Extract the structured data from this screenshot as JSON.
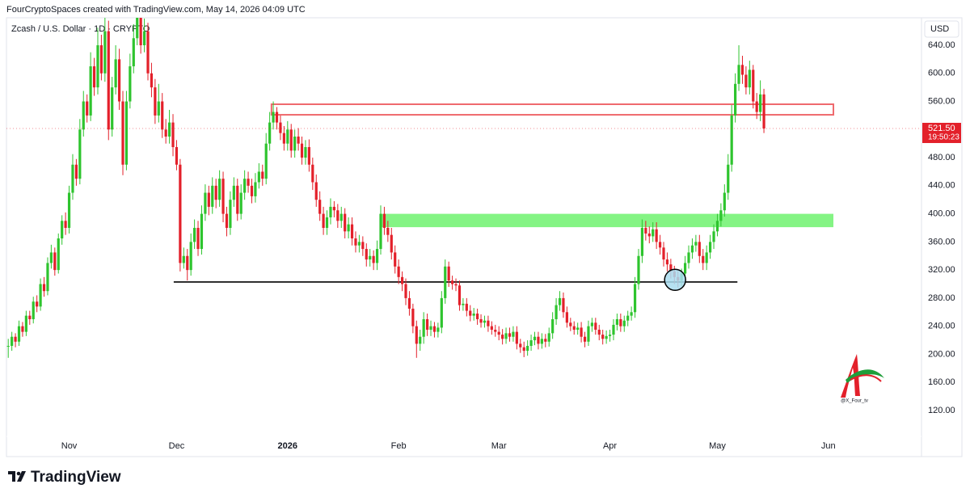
{
  "header": "FourCryptoSpaces created with TradingView.com, May 14, 2026 04:09 UTC",
  "logo": "TradingView",
  "watermark": "@X_Four_tv",
  "chart_data": {
    "type": "candlestick",
    "title": "Zcash / U.S. Dollar · 1D · CRYPTO",
    "currency": "USD",
    "up_color": "#2ec42e",
    "down_color": "#e3202a",
    "close": [
      212,
      225,
      218,
      240,
      232,
      255,
      250,
      275,
      268,
      300,
      290,
      330,
      345,
      320,
      365,
      390,
      380,
      430,
      470,
      450,
      520,
      560,
      540,
      610,
      580,
      640,
      600,
      660,
      520,
      580,
      620,
      560,
      470,
      560,
      610,
      650,
      680,
      640,
      660,
      600,
      580,
      540,
      560,
      520,
      510,
      530,
      495,
      470,
      330,
      340,
      320,
      360,
      380,
      350,
      400,
      430,
      410,
      440,
      420,
      450,
      400,
      380,
      420,
      440,
      400,
      430,
      450,
      440,
      425,
      445,
      460,
      450,
      500,
      530,
      545,
      530,
      515,
      500,
      520,
      490,
      510,
      500,
      480,
      495,
      470,
      445,
      420,
      400,
      380,
      395,
      410,
      405,
      390,
      400,
      375,
      385,
      365,
      355,
      360,
      350,
      335,
      340,
      330,
      350,
      400,
      380,
      370,
      345,
      325,
      310,
      300,
      280,
      265,
      240,
      215,
      225,
      250,
      235,
      240,
      232,
      238,
      280,
      325,
      305,
      300,
      298,
      270,
      272,
      262,
      255,
      258,
      250,
      245,
      248,
      240,
      235,
      232,
      228,
      222,
      230,
      225,
      232,
      215,
      210,
      205,
      212,
      220,
      225,
      215,
      222,
      218,
      230,
      250,
      270,
      280,
      260,
      245,
      240,
      235,
      238,
      225,
      218,
      240,
      245,
      235,
      228,
      222,
      226,
      228,
      242,
      250,
      240,
      248,
      255,
      260,
      300,
      340,
      380,
      372,
      368,
      378,
      360,
      352,
      335,
      328,
      318,
      310,
      305,
      315,
      330,
      345,
      355,
      360,
      340,
      330,
      345,
      360,
      375,
      390,
      405,
      430,
      470,
      540,
      585,
      612,
      598,
      580,
      605,
      560,
      545,
      570,
      521.5
    ],
    "high": [
      222,
      232,
      230,
      248,
      246,
      262,
      262,
      282,
      284,
      308,
      310,
      338,
      356,
      352,
      372,
      398,
      402,
      440,
      485,
      478,
      535,
      575,
      570,
      630,
      622,
      665,
      655,
      690,
      675,
      595,
      640,
      635,
      575,
      575,
      628,
      670,
      700,
      695,
      678,
      672,
      615,
      592,
      585,
      572,
      535,
      548,
      542,
      505,
      478,
      352,
      350,
      372,
      392,
      390,
      412,
      442,
      440,
      452,
      450,
      462,
      460,
      410,
      432,
      452,
      450,
      442,
      462,
      460,
      450,
      458,
      472,
      470,
      515,
      545,
      560,
      552,
      540,
      525,
      532,
      528,
      520,
      522,
      510,
      505,
      506,
      480,
      456,
      432,
      410,
      405,
      422,
      418,
      414,
      410,
      408,
      395,
      395,
      375,
      370,
      368,
      358,
      350,
      348,
      362,
      412,
      410,
      390,
      380,
      355,
      335,
      318,
      308,
      290,
      272,
      248,
      235,
      260,
      258,
      248,
      246,
      245,
      290,
      335,
      332,
      312,
      308,
      305,
      280,
      280,
      270,
      266,
      265,
      257,
      255,
      255,
      247,
      242,
      240,
      236,
      238,
      238,
      240,
      240,
      222,
      218,
      220,
      228,
      232,
      232,
      230,
      229,
      238,
      260,
      280,
      290,
      288,
      268,
      252,
      247,
      245,
      246,
      232,
      248,
      252,
      252,
      242,
      235,
      234,
      235,
      250,
      258,
      258,
      255,
      262,
      268,
      310,
      350,
      392,
      390,
      382,
      388,
      388,
      370,
      360,
      345,
      336,
      326,
      318,
      322,
      340,
      355,
      365,
      370,
      370,
      350,
      355,
      370,
      385,
      400,
      415,
      442,
      485,
      555,
      600,
      640,
      625,
      610,
      618,
      612,
      572,
      590,
      578
    ],
    "low": [
      195,
      205,
      210,
      212,
      225,
      226,
      242,
      244,
      260,
      262,
      282,
      284,
      322,
      312,
      315,
      356,
      370,
      372,
      420,
      440,
      442,
      510,
      530,
      532,
      568,
      570,
      590,
      588,
      505,
      510,
      570,
      548,
      455,
      462,
      550,
      600,
      640,
      628,
      630,
      590,
      566,
      528,
      530,
      508,
      500,
      500,
      482,
      462,
      318,
      322,
      305,
      312,
      350,
      340,
      342,
      390,
      398,
      400,
      408,
      410,
      388,
      368,
      370,
      410,
      390,
      392,
      420,
      430,
      415,
      416,
      436,
      440,
      442,
      490,
      520,
      520,
      505,
      490,
      490,
      480,
      480,
      490,
      470,
      470,
      460,
      434,
      410,
      390,
      370,
      370,
      385,
      395,
      380,
      380,
      365,
      365,
      355,
      345,
      345,
      340,
      325,
      325,
      320,
      320,
      342,
      370,
      360,
      335,
      315,
      300,
      290,
      270,
      255,
      230,
      195,
      205,
      215,
      226,
      226,
      224,
      224,
      230,
      272,
      296,
      292,
      290,
      262,
      262,
      254,
      247,
      248,
      242,
      238,
      238,
      232,
      228,
      225,
      220,
      214,
      215,
      218,
      218,
      207,
      202,
      196,
      198,
      205,
      213,
      207,
      208,
      210,
      211,
      222,
      242,
      262,
      252,
      238,
      233,
      228,
      228,
      217,
      210,
      212,
      232,
      228,
      220,
      214,
      215,
      218,
      220,
      234,
      232,
      232,
      240,
      248,
      252,
      292,
      330,
      362,
      358,
      360,
      350,
      342,
      325,
      318,
      308,
      300,
      295,
      297,
      307,
      322,
      336,
      346,
      330,
      320,
      320,
      336,
      350,
      368,
      382,
      396,
      420,
      460,
      530,
      575,
      585,
      570,
      570,
      550,
      535,
      532,
      515
    ],
    "last_price_label": "521.50",
    "countdown": "19:50:23",
    "xlim": [
      -0.5,
      255
    ],
    "xticks": [
      {
        "value": 17,
        "label": "Nov"
      },
      {
        "value": 47,
        "label": "Dec"
      },
      {
        "value": 78,
        "label": "2026"
      },
      {
        "value": 109,
        "label": "Feb"
      },
      {
        "value": 137,
        "label": "Mar"
      },
      {
        "value": 168,
        "label": "Apr"
      },
      {
        "value": 198,
        "label": "May"
      },
      {
        "value": 229,
        "label": "Jun"
      }
    ],
    "ylim": [
      54.4,
      679.1
    ],
    "yticks": [
      {
        "value": 120,
        "label": "120.00"
      },
      {
        "value": 160,
        "label": "160.00"
      },
      {
        "value": 200,
        "label": "200.00"
      },
      {
        "value": 240,
        "label": "240.00"
      },
      {
        "value": 280,
        "label": "280.00"
      },
      {
        "value": 320,
        "label": "320.00"
      },
      {
        "value": 360,
        "label": "360.00"
      },
      {
        "value": 400,
        "label": "400.00"
      },
      {
        "value": 440,
        "label": "440.00"
      },
      {
        "value": 480,
        "label": "480.00"
      },
      {
        "value": 520,
        "label": "520.00"
      },
      {
        "value": 560,
        "label": "560.00"
      },
      {
        "value": 600,
        "label": "600.00"
      },
      {
        "value": 640,
        "label": "640.00"
      }
    ],
    "annotations": [
      {
        "kind": "rect",
        "x": [
          73.5,
          230.4
        ],
        "y": [
          541,
          556
        ],
        "color": "#ef6a6e"
      },
      {
        "kind": "rect",
        "x": [
          103.8,
          230.4
        ],
        "y": [
          381,
          400
        ],
        "color": "#84f484"
      },
      {
        "kind": "line",
        "x": [
          46.2,
          203.6
        ],
        "y": [
          303
        ],
        "color": "#000000"
      },
      {
        "kind": "circle",
        "x": [
          186.2
        ],
        "y": [
          306
        ],
        "color": "#a9dcee"
      }
    ]
  }
}
